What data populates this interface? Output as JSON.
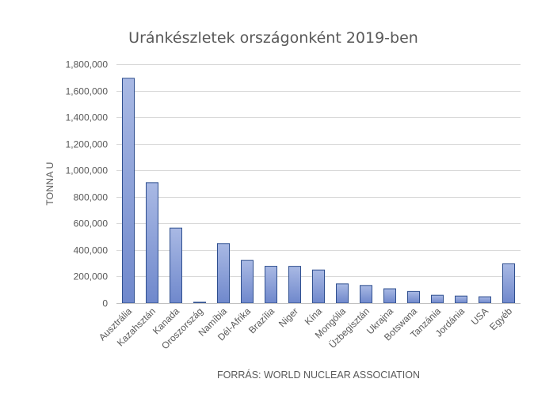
{
  "chart_data": {
    "type": "bar",
    "title": "Uránkészletek országonként 2019-ben",
    "ylabel": "TONNA U",
    "xlabel": "",
    "source": "FORRÁS:  WORLD NUCLEAR ASSOCIATION",
    "ylim": [
      0,
      1800000
    ],
    "y_ticks": [
      "0",
      "200,000",
      "400,000",
      "600,000",
      "800,000",
      "1,000,000",
      "1,200,000",
      "1,400,000",
      "1,600,000",
      "1,800,000"
    ],
    "grid": true,
    "legend": "none",
    "categories": [
      "Ausztrália",
      "Kazahsztán",
      "Kanada",
      "Oroszország",
      "Namíbia",
      "Dél-Afrika",
      "Brazília",
      "Niger",
      "Kína",
      "Mongólia",
      "Üzbegisztán",
      "Ukrajna",
      "Botswana",
      "Tanzánia",
      "Jordánia",
      "USA",
      "Egyéb"
    ],
    "values": [
      1692700,
      906800,
      564900,
      6000,
      448300,
      320900,
      276800,
      276400,
      248900,
      144100,
      132300,
      107200,
      87200,
      58500,
      52500,
      47200,
      295700
    ],
    "colors": {
      "bar_top": "#a9b9e4",
      "bar_bottom": "#6f88cc",
      "bar_stroke": "#2f4f8f"
    }
  }
}
